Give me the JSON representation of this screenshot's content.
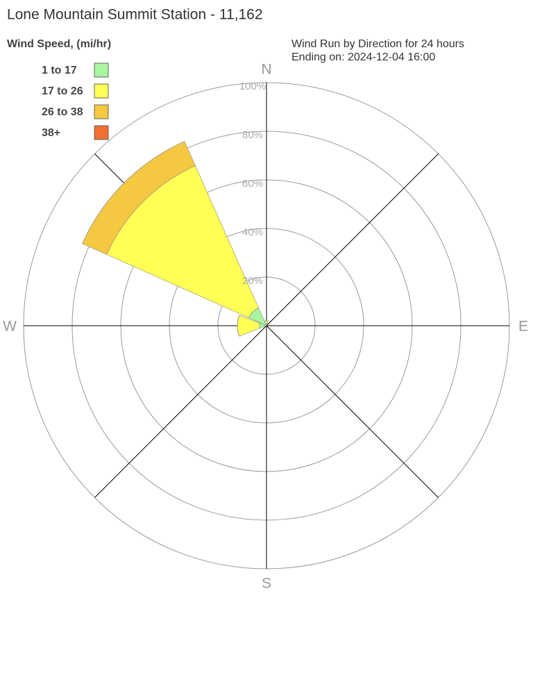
{
  "chart_data": {
    "type": "windrose",
    "title": "Lone Mountain Summit Station - 11,162",
    "legend_title": "Wind Speed, (mi/hr)",
    "subtitle": [
      "Wind Run by Direction for 24 hours",
      "Ending on: 2024-12-04 16:00"
    ],
    "categories": [
      "N",
      null,
      "E",
      null,
      "S",
      null,
      "W",
      null
    ],
    "series": [
      {
        "name": "1 to 17",
        "color": "#aaf5a0",
        "values": [
          1,
          0,
          0,
          0,
          0,
          0,
          3,
          8
        ]
      },
      {
        "name": "17 to 26",
        "color": "#ffff55",
        "values": [
          1,
          0,
          0,
          0,
          0,
          0,
          9,
          64
        ]
      },
      {
        "name": "26 to 38",
        "color": "#f5c842",
        "values": [
          0,
          0,
          0,
          0,
          0,
          0,
          0,
          11
        ]
      },
      {
        "name": "38+",
        "color": "#f07030",
        "values": [
          0,
          0,
          0,
          0,
          0,
          0,
          0,
          0
        ]
      }
    ],
    "rlim": [
      0,
      100
    ],
    "rticks": [
      {
        "value": 20,
        "label": "20%"
      },
      {
        "value": 40,
        "label": "40%"
      },
      {
        "value": 60,
        "label": "60%"
      },
      {
        "value": 80,
        "label": "80%"
      },
      {
        "value": 100,
        "label": "100%"
      }
    ]
  }
}
